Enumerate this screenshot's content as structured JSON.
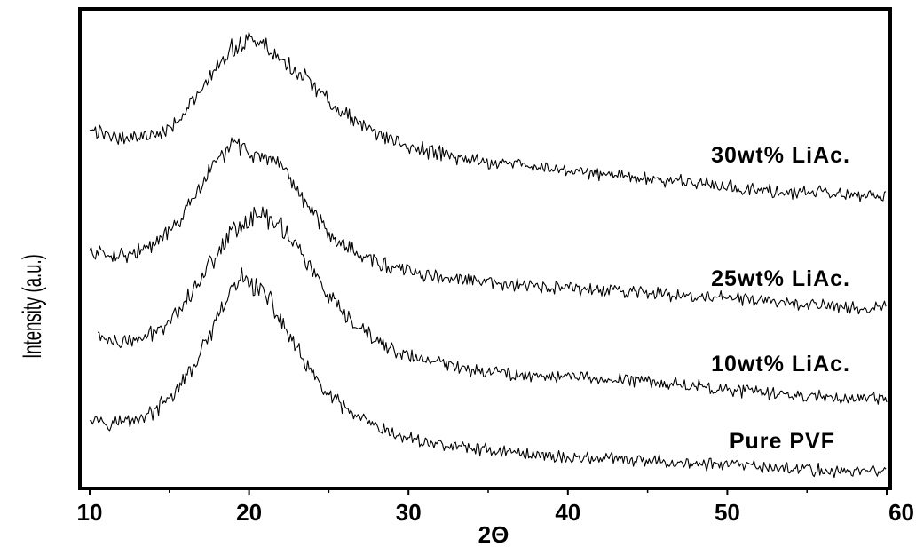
{
  "chart_data": {
    "type": "line",
    "xlabel": "2Θ",
    "ylabel": "Intensity (a.u.)",
    "xlim": [
      10,
      60
    ],
    "xticks": [
      10,
      20,
      30,
      40,
      50,
      60
    ],
    "grid": false,
    "series": [
      {
        "name": "Pure PVF",
        "peak_2theta": 19.7,
        "x": [
          10,
          11,
          12,
          13,
          14,
          15,
          16,
          17,
          18,
          19,
          19.7,
          20,
          21,
          22,
          23,
          24,
          25,
          26,
          27,
          28,
          29,
          30,
          32,
          34,
          36,
          38,
          40,
          42,
          44,
          46,
          48,
          50,
          52,
          54,
          56,
          58,
          60
        ],
        "y": [
          0.21,
          0.19,
          0.19,
          0.2,
          0.22,
          0.26,
          0.32,
          0.4,
          0.5,
          0.6,
          0.63,
          0.62,
          0.58,
          0.5,
          0.41,
          0.33,
          0.27,
          0.23,
          0.2,
          0.17,
          0.15,
          0.14,
          0.12,
          0.11,
          0.1,
          0.09,
          0.08,
          0.08,
          0.07,
          0.07,
          0.06,
          0.06,
          0.05,
          0.05,
          0.04,
          0.04,
          0.04
        ]
      },
      {
        "name": "10wt% LiAc.",
        "peak_2theta": 21.0,
        "x": [
          10.5,
          11,
          12,
          13,
          14,
          15,
          16,
          17,
          18,
          19,
          20,
          21,
          22,
          23,
          24,
          25,
          26,
          27,
          28,
          29,
          30,
          32,
          34,
          36,
          38,
          40,
          42,
          44,
          46,
          48,
          50,
          52,
          54,
          56,
          58,
          60
        ],
        "y": [
          0.46,
          0.44,
          0.43,
          0.44,
          0.46,
          0.5,
          0.56,
          0.63,
          0.71,
          0.78,
          0.81,
          0.82,
          0.79,
          0.73,
          0.65,
          0.57,
          0.51,
          0.47,
          0.44,
          0.41,
          0.39,
          0.37,
          0.35,
          0.34,
          0.33,
          0.33,
          0.32,
          0.32,
          0.31,
          0.3,
          0.29,
          0.28,
          0.27,
          0.27,
          0.26,
          0.26
        ]
      },
      {
        "name": "25wt% LiAc.",
        "peak_2theta": 19.3,
        "x": [
          10,
          11,
          12,
          13,
          14,
          15,
          16,
          17,
          18,
          19,
          20,
          21,
          22,
          23,
          24,
          25,
          26,
          27,
          28,
          29,
          30,
          32,
          34,
          36,
          38,
          40,
          42,
          44,
          46,
          48,
          50,
          52,
          54,
          56,
          58,
          60
        ],
        "y": [
          0.71,
          0.7,
          0.7,
          0.71,
          0.73,
          0.77,
          0.83,
          0.91,
          0.99,
          1.04,
          1.02,
          0.99,
          0.96,
          0.9,
          0.83,
          0.77,
          0.73,
          0.7,
          0.68,
          0.66,
          0.65,
          0.63,
          0.62,
          0.61,
          0.6,
          0.6,
          0.59,
          0.59,
          0.58,
          0.57,
          0.57,
          0.56,
          0.55,
          0.55,
          0.54,
          0.54
        ]
      },
      {
        "name": "30wt% LiAc.",
        "peak_2theta": 20.0,
        "x": [
          10,
          11,
          12,
          13,
          14,
          15,
          16,
          17,
          18,
          19,
          20,
          21,
          22,
          23,
          24,
          25,
          26,
          27,
          28,
          29,
          30,
          32,
          34,
          36,
          38,
          40,
          42,
          44,
          46,
          48,
          50,
          52,
          54,
          56,
          58,
          60
        ],
        "y": [
          1.08,
          1.07,
          1.06,
          1.06,
          1.07,
          1.09,
          1.14,
          1.2,
          1.27,
          1.33,
          1.36,
          1.34,
          1.3,
          1.26,
          1.22,
          1.17,
          1.13,
          1.1,
          1.07,
          1.05,
          1.03,
          1.01,
          0.99,
          0.98,
          0.97,
          0.96,
          0.95,
          0.94,
          0.93,
          0.92,
          0.91,
          0.9,
          0.89,
          0.89,
          0.88,
          0.88
        ]
      }
    ]
  }
}
